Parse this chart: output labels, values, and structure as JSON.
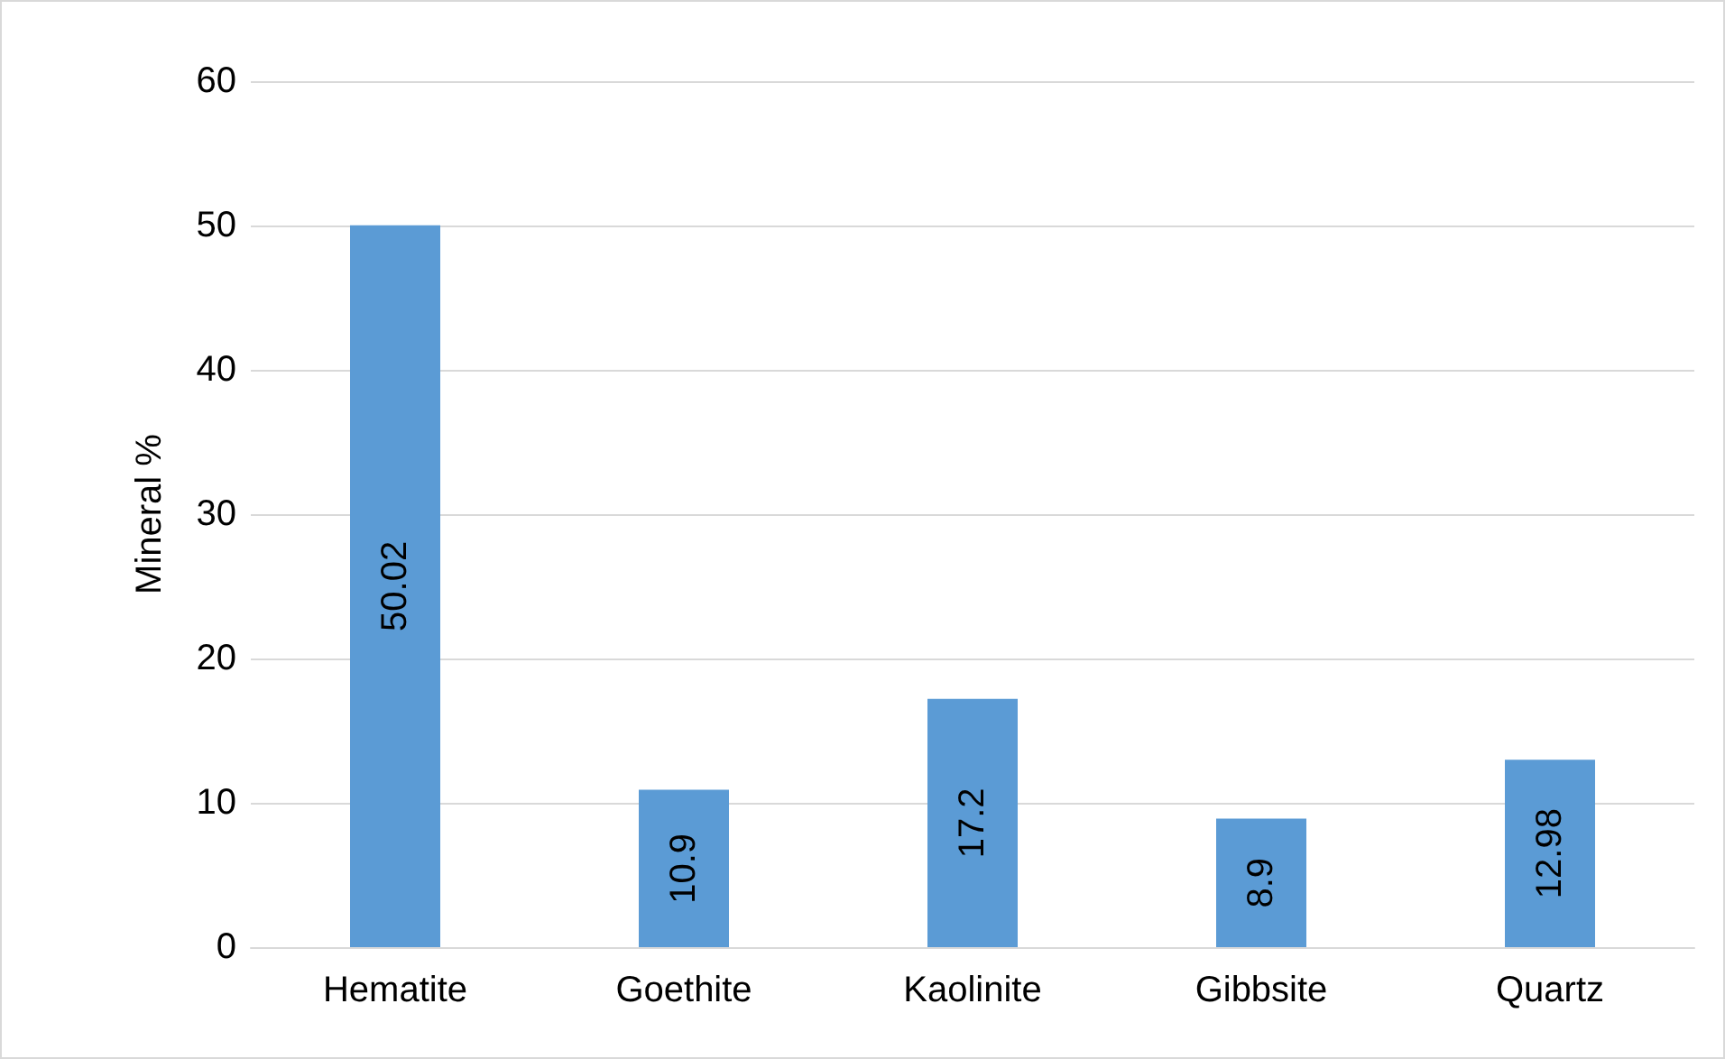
{
  "chart_data": {
    "type": "bar",
    "ylabel": "Mineral %",
    "categories": [
      "Hematite",
      "Goethite",
      "Kaolinite",
      "Gibbsite",
      "Quartz"
    ],
    "values": [
      50.02,
      10.9,
      17.2,
      8.9,
      12.98
    ],
    "color": "#5b9bd5",
    "ylim": [
      0,
      60
    ],
    "yticks": [
      0,
      10,
      20,
      30,
      40,
      50,
      60
    ],
    "grid": "y",
    "data_labels": true
  }
}
